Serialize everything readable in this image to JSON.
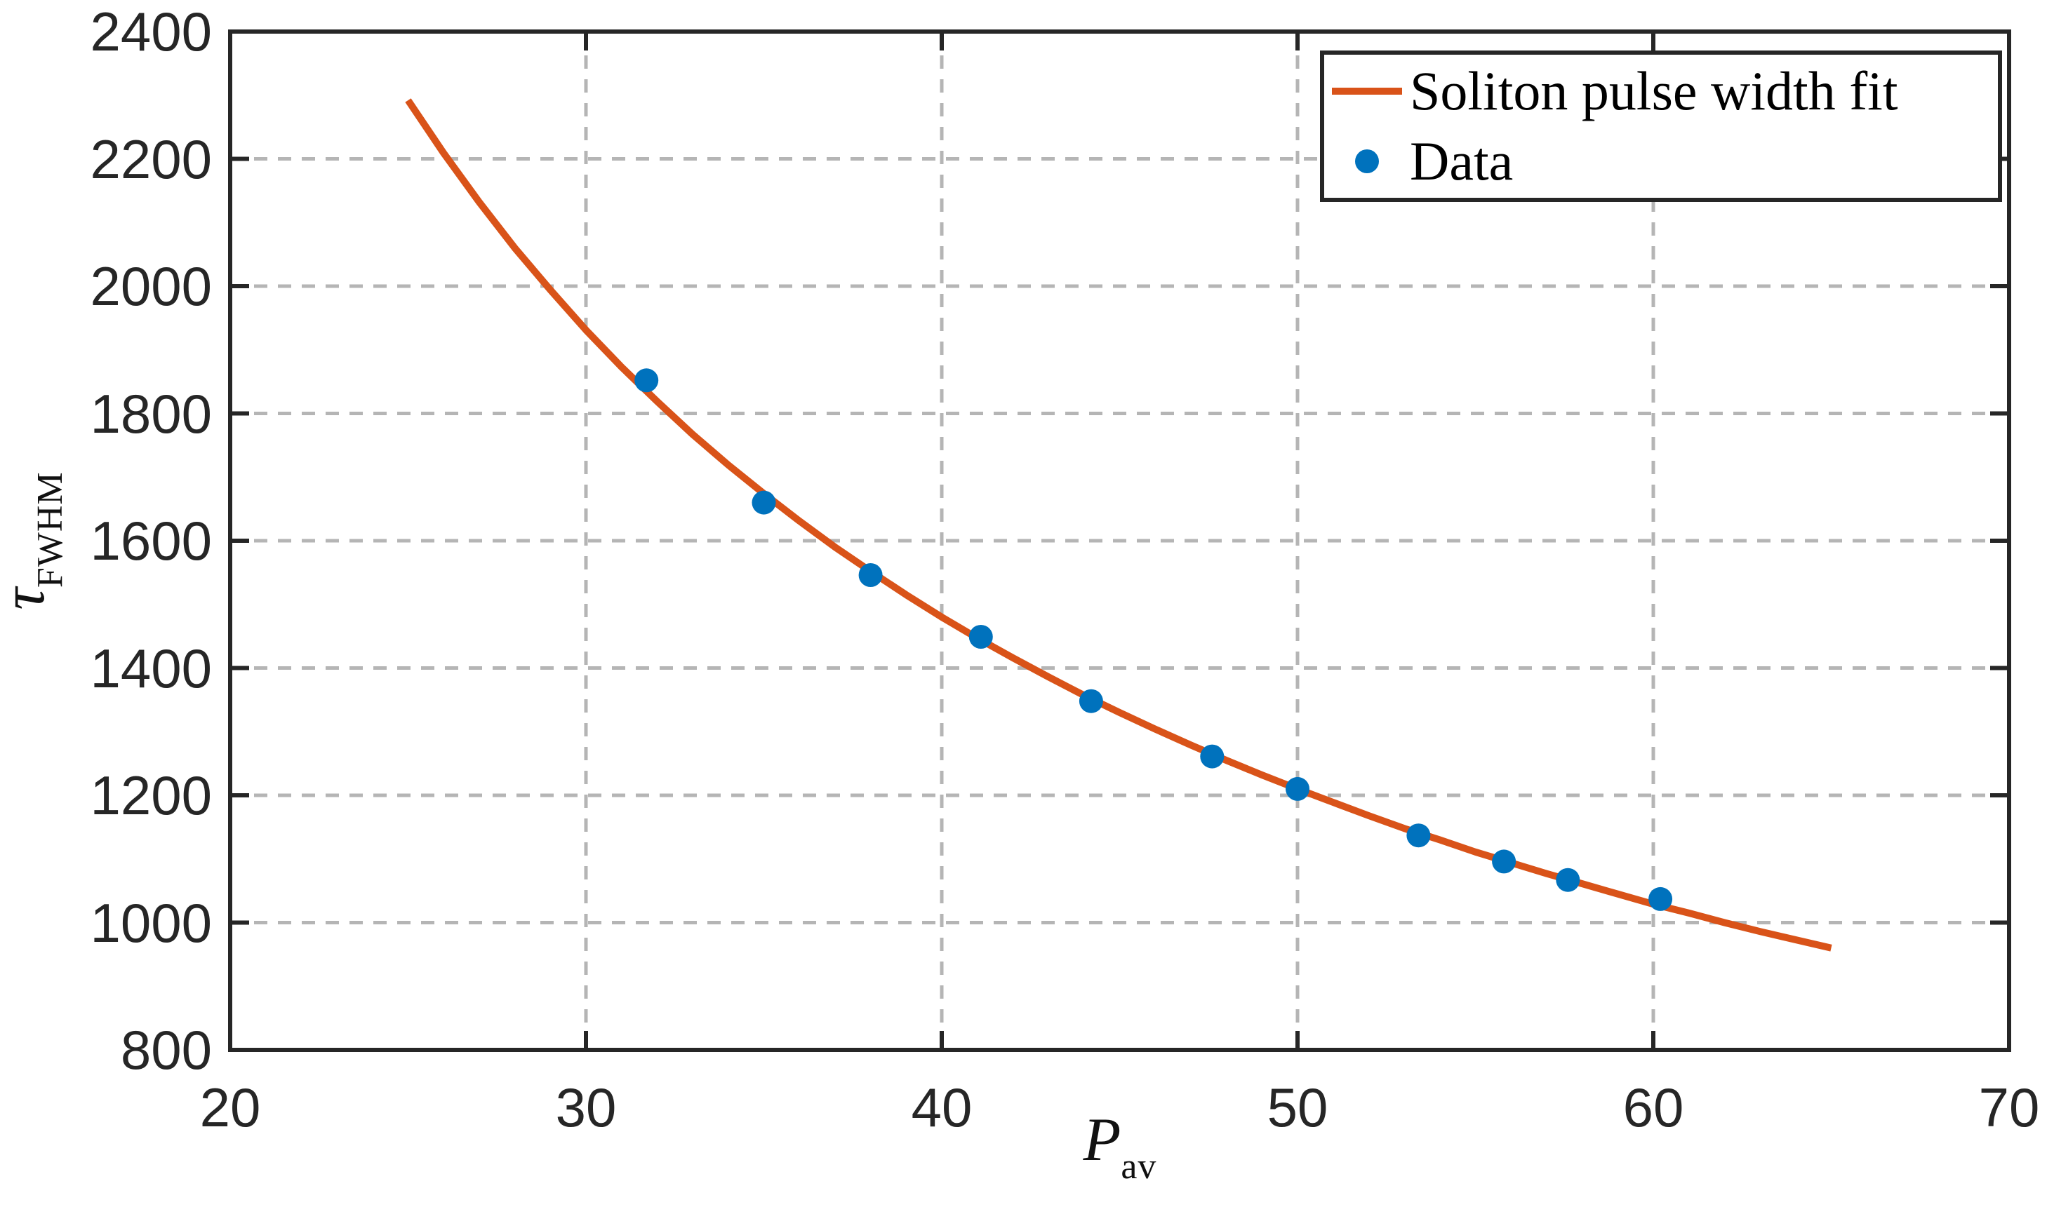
{
  "figure": {
    "background": "#ffffff"
  },
  "palette": {
    "fit_line": "#D95319",
    "data_marker": "#0072BD",
    "axis": "#262626",
    "grid": "#B5B5B5",
    "text": "#111111"
  },
  "labels": {
    "ylabel_main": "τ",
    "ylabel_sub": "FWHM",
    "xlabel_main": "P",
    "xlabel_sub": "av"
  },
  "legend": {
    "position": "top-right",
    "entries": [
      {
        "label": "Soliton pulse width fit",
        "marker": "line",
        "color": "#D95319"
      },
      {
        "label": "Data",
        "marker": "dot",
        "color": "#0072BD"
      }
    ]
  },
  "chart_data": {
    "type": "scatter",
    "title": "",
    "xlabel": "P_av",
    "ylabel": "tau_FWHM",
    "xlim": [
      20,
      70
    ],
    "ylim": [
      800,
      2400
    ],
    "xticks": [
      20,
      30,
      40,
      50,
      60,
      70
    ],
    "yticks": [
      800,
      1000,
      1200,
      1400,
      1600,
      1800,
      2000,
      2200,
      2400
    ],
    "grid": "dashed",
    "legend_position": "top-right",
    "series": [
      {
        "name": "Soliton pulse width fit",
        "type": "line",
        "color": "#D95319",
        "points": [
          [
            25,
            2292
          ],
          [
            26,
            2209
          ],
          [
            27,
            2132
          ],
          [
            28,
            2060
          ],
          [
            29,
            1994
          ],
          [
            30,
            1931
          ],
          [
            31,
            1873
          ],
          [
            32,
            1819
          ],
          [
            33,
            1767
          ],
          [
            34,
            1719
          ],
          [
            35,
            1674
          ],
          [
            36,
            1631
          ],
          [
            37,
            1590
          ],
          [
            38,
            1552
          ],
          [
            39,
            1515
          ],
          [
            40,
            1480
          ],
          [
            41,
            1447
          ],
          [
            42,
            1416
          ],
          [
            43,
            1386
          ],
          [
            44,
            1357
          ],
          [
            45,
            1330
          ],
          [
            46,
            1304
          ],
          [
            47,
            1279
          ],
          [
            48,
            1255
          ],
          [
            49,
            1232
          ],
          [
            50,
            1210
          ],
          [
            51,
            1189
          ],
          [
            52,
            1168
          ],
          [
            53,
            1148
          ],
          [
            54,
            1130
          ],
          [
            55,
            1111
          ],
          [
            56,
            1094
          ],
          [
            57,
            1077
          ],
          [
            58,
            1061
          ],
          [
            59,
            1045
          ],
          [
            60,
            1029
          ],
          [
            61,
            1015
          ],
          [
            62,
            1000
          ],
          [
            63,
            986
          ],
          [
            64,
            973
          ],
          [
            65,
            960
          ]
        ]
      },
      {
        "name": "Data",
        "type": "scatter",
        "color": "#0072BD",
        "points": [
          [
            31.7,
            1852
          ],
          [
            35.0,
            1660
          ],
          [
            38.0,
            1546
          ],
          [
            41.1,
            1449
          ],
          [
            44.2,
            1348
          ],
          [
            47.6,
            1261
          ],
          [
            50.0,
            1210
          ],
          [
            53.4,
            1137
          ],
          [
            55.8,
            1096
          ],
          [
            57.6,
            1067
          ],
          [
            60.2,
            1037
          ]
        ]
      }
    ]
  }
}
